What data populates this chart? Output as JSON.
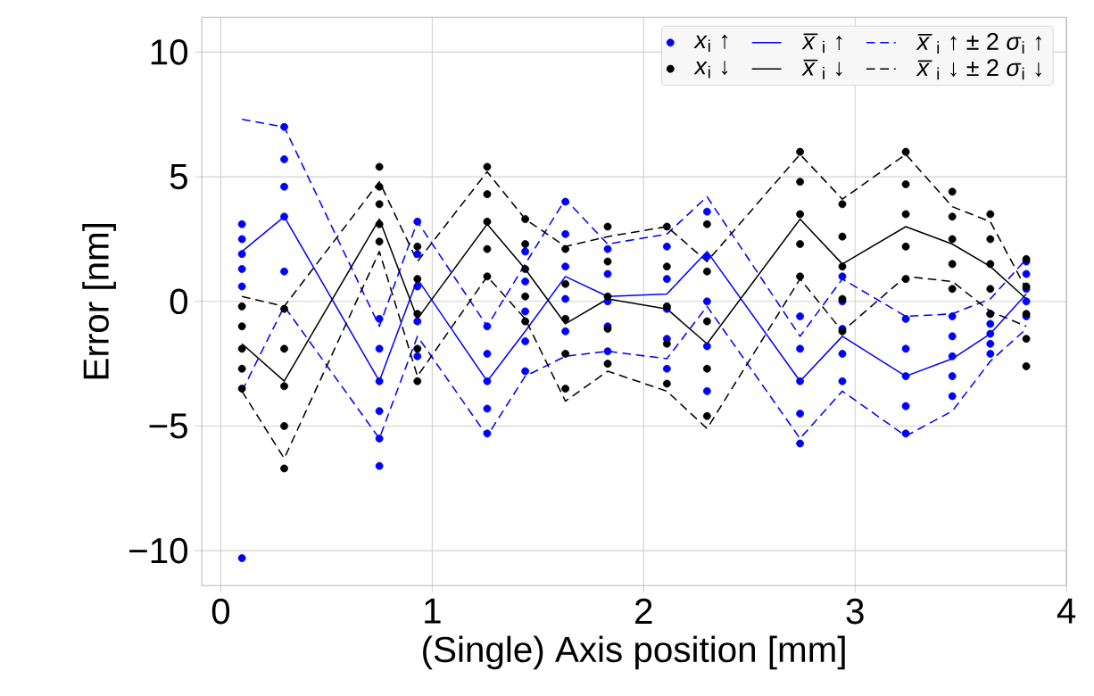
{
  "chart_data": {
    "type": "scatter",
    "xlabel": "(Single) Axis position [mm]",
    "ylabel": "Error [nm]",
    "xlim": [
      -0.09,
      4.0
    ],
    "ylim": [
      -11.4,
      11.4
    ],
    "xticks": [
      0,
      1,
      2,
      3,
      4
    ],
    "yticks": [
      {
        "value": -10,
        "label": "−10"
      },
      {
        "value": -5,
        "label": "−5"
      },
      0,
      5,
      10
    ],
    "grid": true,
    "legend": "top right",
    "series": [
      {
        "name": "*x*$_{i}$ ↑",
        "marker": "circle",
        "color": "#0000ff",
        "x": [
          0.1,
          0.1,
          0.1,
          0.1,
          0.1,
          0.1,
          0.3,
          0.3,
          0.3,
          0.3,
          0.3,
          0.75,
          0.75,
          0.75,
          0.75,
          0.75,
          0.75,
          0.93,
          0.93,
          0.93,
          0.93,
          0.93,
          1.26,
          1.26,
          1.26,
          1.26,
          1.26,
          1.44,
          1.44,
          1.44,
          1.44,
          1.44,
          1.63,
          1.63,
          1.63,
          1.63,
          1.63,
          1.83,
          1.83,
          1.83,
          1.83,
          1.83,
          2.11,
          2.11,
          2.11,
          2.11,
          2.11,
          2.3,
          2.3,
          2.3,
          2.3,
          2.3,
          2.74,
          2.74,
          2.74,
          2.74,
          2.74,
          2.94,
          2.94,
          2.94,
          2.94,
          2.94,
          3.24,
          3.24,
          3.24,
          3.24,
          3.24,
          3.46,
          3.46,
          3.46,
          3.46,
          3.46,
          3.64,
          3.64,
          3.64,
          3.64,
          3.64,
          3.81,
          3.81,
          3.81,
          3.81,
          3.81
        ],
        "values": [
          3.1,
          2.5,
          1.9,
          1.3,
          0.6,
          -10.3,
          7.0,
          5.7,
          4.6,
          3.4,
          1.2,
          -0.7,
          -1.9,
          -3.2,
          -4.4,
          -5.5,
          -6.6,
          3.2,
          1.9,
          0.6,
          -0.8,
          -2.2,
          -1.0,
          -2.1,
          -3.2,
          -4.3,
          -5.3,
          2.0,
          0.8,
          -0.4,
          -1.6,
          -2.8,
          4.0,
          2.7,
          1.4,
          0.1,
          -1.2,
          2.1,
          1.1,
          0.0,
          -1.0,
          -2.0,
          2.2,
          0.9,
          -0.3,
          -1.5,
          -2.7,
          3.6,
          1.8,
          0.0,
          -1.8,
          -3.6,
          -0.6,
          -1.9,
          -3.2,
          -4.5,
          -5.7,
          1.0,
          0.0,
          -1.1,
          -2.1,
          -3.2,
          -0.7,
          -1.9,
          -3.0,
          -4.2,
          -5.3,
          -0.6,
          -1.4,
          -2.2,
          -3.0,
          -3.8,
          -0.5,
          -0.9,
          -1.3,
          -1.7,
          -2.1,
          1.6,
          1.1,
          0.5,
          0.0,
          -0.6
        ]
      },
      {
        "name": "*x̅*$_{i}$ ↑",
        "type": "line",
        "marker": "none",
        "line_style": "solid",
        "color": "#0000ff",
        "x": [
          0.1,
          0.3,
          0.75,
          0.93,
          1.26,
          1.44,
          1.63,
          1.83,
          2.11,
          2.3,
          2.74,
          2.94,
          3.24,
          3.46,
          3.64,
          3.81
        ],
        "values": [
          2.0,
          3.4,
          -3.2,
          0.9,
          -3.2,
          -1.2,
          1.0,
          0.2,
          0.3,
          2.0,
          -3.2,
          -1.4,
          -3.0,
          -2.3,
          -1.3,
          0.3
        ]
      },
      {
        "name": "*x̅*$_{i}$ ↑ ± 2 *σ*$_{i}$ ↑",
        "type": "line",
        "marker": "none",
        "line_style": "dashed",
        "color": "#0000ff",
        "x": [
          0.1,
          0.3,
          0.75,
          0.93,
          1.26,
          1.44,
          1.63,
          1.83,
          2.11,
          2.3,
          2.74,
          2.94,
          3.24,
          3.46,
          3.64,
          3.81
        ],
        "values": [
          7.3,
          7.0,
          -1.0,
          3.2,
          -1.0,
          1.5,
          4.1,
          2.3,
          2.7,
          4.2,
          -1.4,
          0.9,
          -0.6,
          -0.5,
          0.1,
          1.7
        ]
      },
      {
        "name": "*x*$_{i}$ ↓",
        "marker": "circle",
        "color": "#000000",
        "x": [
          0.1,
          0.1,
          0.1,
          0.1,
          0.1,
          0.3,
          0.3,
          0.3,
          0.3,
          0.3,
          0.75,
          0.75,
          0.75,
          0.75,
          0.75,
          0.93,
          0.93,
          0.93,
          0.93,
          0.93,
          1.26,
          1.26,
          1.26,
          1.26,
          1.26,
          1.44,
          1.44,
          1.44,
          1.44,
          1.44,
          1.63,
          1.63,
          1.63,
          1.63,
          1.63,
          1.83,
          1.83,
          1.83,
          1.83,
          1.83,
          2.11,
          2.11,
          2.11,
          2.11,
          2.11,
          2.3,
          2.3,
          2.3,
          2.3,
          2.3,
          2.74,
          2.74,
          2.74,
          2.74,
          2.74,
          2.94,
          2.94,
          2.94,
          2.94,
          2.94,
          3.24,
          3.24,
          3.24,
          3.24,
          3.24,
          3.46,
          3.46,
          3.46,
          3.46,
          3.46,
          3.64,
          3.64,
          3.64,
          3.64,
          3.64,
          3.81,
          3.81,
          3.81,
          3.81,
          3.81
        ],
        "values": [
          -0.2,
          -1.0,
          -1.9,
          -2.7,
          -3.5,
          -0.3,
          -1.9,
          -3.4,
          -5.0,
          -6.7,
          5.4,
          4.6,
          3.9,
          3.1,
          2.4,
          2.2,
          0.9,
          -0.5,
          -1.9,
          -3.2,
          5.4,
          4.3,
          3.2,
          2.1,
          1.0,
          3.3,
          2.3,
          1.3,
          0.2,
          -0.8,
          2.1,
          0.7,
          -0.7,
          -2.1,
          -3.5,
          3.0,
          1.6,
          0.2,
          -1.1,
          -2.5,
          3.0,
          1.4,
          -0.2,
          -1.7,
          -3.3,
          3.1,
          1.2,
          -0.8,
          -2.7,
          -4.6,
          6.0,
          4.8,
          3.5,
          2.3,
          1.0,
          3.9,
          2.6,
          1.4,
          0.1,
          -1.2,
          6.0,
          4.7,
          3.5,
          2.2,
          0.9,
          4.4,
          3.4,
          2.5,
          1.5,
          0.5,
          3.5,
          2.5,
          1.5,
          0.5,
          -0.5,
          1.7,
          0.6,
          -0.5,
          -1.5,
          -2.6
        ]
      },
      {
        "name": "*x̅*$_{i}$ ↓",
        "type": "line",
        "marker": "none",
        "line_style": "solid",
        "color": "#000000",
        "x": [
          0.1,
          0.3,
          0.75,
          0.93,
          1.26,
          1.44,
          1.63,
          1.83,
          2.11,
          2.3,
          2.74,
          2.94,
          3.24,
          3.46,
          3.64,
          3.81
        ],
        "values": [
          -1.7,
          -3.2,
          3.3,
          -0.7,
          3.1,
          1.3,
          -0.9,
          0.1,
          -0.3,
          -1.7,
          3.3,
          1.5,
          3.0,
          2.3,
          1.4,
          0.1
        ]
      },
      {
        "name": "*x̅*$_{i}$ ↓ ± 2 *σ*$_{i}$ ↓",
        "type": "line",
        "marker": "none",
        "line_style": "dashed",
        "color": "#000000",
        "x": [
          0.1,
          0.3,
          0.75,
          0.93,
          1.26,
          1.44,
          1.63,
          1.83,
          2.11,
          2.3,
          2.74,
          2.94,
          3.24,
          3.46,
          3.64,
          3.81
        ],
        "values": [
          0.2,
          -0.2,
          4.8,
          1.6,
          5.2,
          3.3,
          2.2,
          2.6,
          3.0,
          1.6,
          5.9,
          4.1,
          5.9,
          3.8,
          3.2,
          0.5
        ]
      },
      {
        "type": "line",
        "marker": "none",
        "line_style": "dashed",
        "color": "#0000ff",
        "x": [
          0.1,
          0.3,
          0.75,
          0.93,
          1.26,
          1.44,
          1.63,
          1.83,
          2.11,
          2.3,
          2.74,
          2.94,
          3.24,
          3.46,
          3.64,
          3.81
        ],
        "values": [
          -3.6,
          -0.2,
          -5.5,
          -1.4,
          -5.4,
          -3.0,
          -2.2,
          -2.0,
          -2.3,
          -0.2,
          -5.5,
          -3.6,
          -5.4,
          -4.4,
          -2.4,
          -1.1
        ]
      },
      {
        "type": "line",
        "marker": "none",
        "line_style": "dashed",
        "color": "#000000",
        "x": [
          0.1,
          0.3,
          0.75,
          0.93,
          1.26,
          1.44,
          1.63,
          1.83,
          2.11,
          2.3,
          2.74,
          2.94,
          3.24,
          3.46,
          3.64,
          3.81
        ],
        "values": [
          -3.6,
          -6.3,
          2.0,
          -3.0,
          1.0,
          -0.7,
          -4.0,
          -2.8,
          -3.6,
          -5.1,
          0.9,
          -1.2,
          1.0,
          0.8,
          -0.4,
          -1.0
        ]
      }
    ]
  }
}
